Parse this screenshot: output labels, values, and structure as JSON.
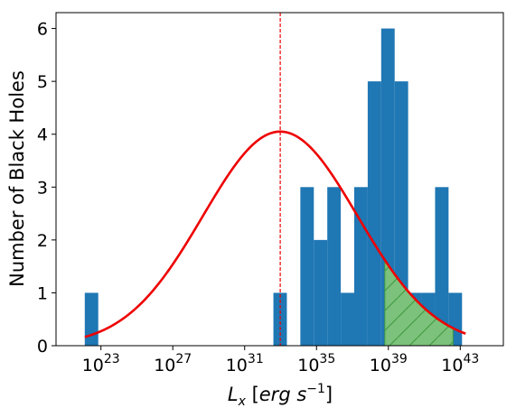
{
  "chart_data": {
    "type": "bar",
    "title": "",
    "xlabel_parts": {
      "var": "L",
      "sub": "x",
      "open": " [",
      "unit_base": "erg s",
      "unit_exp": "−1",
      "close": "]"
    },
    "ylabel": "Number of Black Holes",
    "x_scale": "log10",
    "xlim_log10": [
      20.5,
      45.4
    ],
    "ylim": [
      0,
      6.3
    ],
    "x_ticks": [
      {
        "exp": 23,
        "base": "10",
        "sup": "23"
      },
      {
        "exp": 27,
        "base": "10",
        "sup": "27"
      },
      {
        "exp": 31,
        "base": "10",
        "sup": "31"
      },
      {
        "exp": 35,
        "base": "10",
        "sup": "35"
      },
      {
        "exp": 39,
        "base": "10",
        "sup": "39"
      },
      {
        "exp": 43,
        "base": "10",
        "sup": "43"
      }
    ],
    "y_ticks": [
      0,
      1,
      2,
      3,
      4,
      5,
      6
    ],
    "grid": false,
    "legend": "none",
    "histogram": {
      "bin_start_log10": 22.1,
      "bin_width_log10": 0.75,
      "counts": [
        1,
        0,
        0,
        0,
        0,
        0,
        0,
        0,
        0,
        0,
        0,
        0,
        0,
        0,
        1,
        0,
        3,
        2,
        3,
        1,
        3,
        5,
        6,
        5,
        1,
        1,
        3,
        1,
        0,
        0,
        0,
        0,
        0,
        0,
        0,
        0,
        0,
        0,
        0,
        1,
        1
      ],
      "color": "#1f77b4"
    },
    "gaussian_fit": {
      "mean_log10": 32.98,
      "sigma_log10": 4.3,
      "amplitude": 4.05,
      "x_range_log10": [
        22.1,
        43.3
      ],
      "color": "#ee0000"
    },
    "mean_line": {
      "x_log10": 32.98,
      "color": "#ee0000",
      "style": "dashed"
    },
    "shaded_region": {
      "x_range_log10": [
        38.8,
        42.6
      ],
      "fill": "#7cc17c",
      "edge": "#3f9a3f",
      "hatch": "diagonal"
    }
  }
}
